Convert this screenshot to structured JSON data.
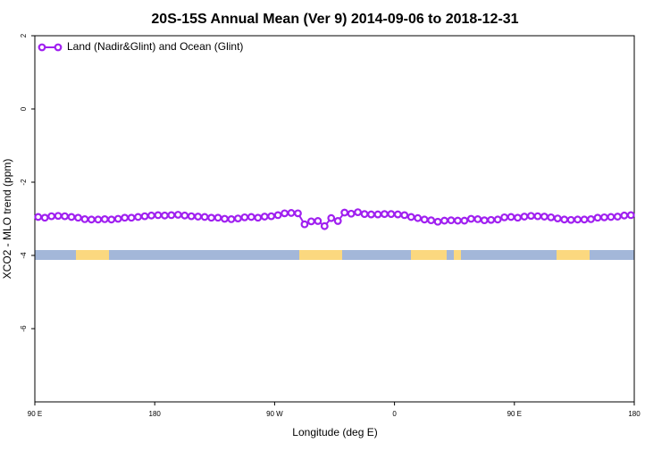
{
  "chart_data": {
    "type": "line",
    "title": "20S-15S Annual Mean (Ver 9)   2014-09-06 to 2018-12-31",
    "xlabel": "Longitude (deg E)",
    "ylabel": "XCO2 - MLO trend (ppm)",
    "xlim": [
      90,
      540
    ],
    "xticks": [
      {
        "value": 90,
        "label": "90 E"
      },
      180,
      {
        "value": 270,
        "label": "90 W"
      },
      {
        "value": 360,
        "label": "0"
      },
      {
        "value": 450,
        "label": "90 E"
      },
      {
        "value": 540,
        "label": "180"
      }
    ],
    "ylim": [
      -8,
      2
    ],
    "yticks": [
      2,
      0,
      -2,
      -4,
      -6
    ],
    "legend": "upper left",
    "x": [
      92.5,
      97.5,
      102.5,
      107.5,
      112.5,
      117.5,
      122.5,
      127.5,
      132.5,
      137.5,
      142.5,
      147.5,
      152.5,
      157.5,
      162.5,
      167.5,
      172.5,
      177.5,
      182.5,
      187.5,
      192.5,
      197.5,
      202.5,
      207.5,
      212.5,
      217.5,
      222.5,
      227.5,
      232.5,
      237.5,
      242.5,
      247.5,
      252.5,
      257.5,
      262.5,
      267.5,
      272.5,
      277.5,
      282.5,
      287.5,
      292.5,
      297.5,
      302.5,
      307.5,
      312.5,
      317.5,
      322.5,
      327.5,
      332.5,
      337.5,
      342.5,
      347.5,
      352.5,
      357.5,
      362.5,
      367.5,
      372.5,
      377.5,
      382.5,
      387.5,
      392.5,
      397.5,
      402.5,
      407.5,
      412.5,
      417.5,
      422.5,
      427.5,
      432.5,
      437.5,
      442.5,
      447.5,
      452.5,
      457.5,
      462.5,
      467.5,
      472.5,
      477.5,
      482.5,
      487.5,
      492.5,
      497.5,
      502.5,
      507.5,
      512.5,
      517.5,
      522.5,
      527.5,
      532.5,
      537.5
    ],
    "series": [
      {
        "name": "Land (Nadir&Glint) and Ocean (Glint)",
        "color": "#a020f0",
        "values": [
          -2.95,
          -2.97,
          -2.93,
          -2.92,
          -2.93,
          -2.95,
          -2.97,
          -3.01,
          -3.02,
          -3.02,
          -3.01,
          -3.02,
          -3.0,
          -2.97,
          -2.97,
          -2.95,
          -2.93,
          -2.91,
          -2.9,
          -2.91,
          -2.9,
          -2.89,
          -2.91,
          -2.93,
          -2.94,
          -2.95,
          -2.97,
          -2.97,
          -3.0,
          -3.01,
          -2.99,
          -2.96,
          -2.95,
          -2.97,
          -2.94,
          -2.93,
          -2.9,
          -2.85,
          -2.84,
          -2.85,
          -3.15,
          -3.07,
          -3.06,
          -3.2,
          -2.98,
          -3.06,
          -2.83,
          -2.86,
          -2.82,
          -2.87,
          -2.88,
          -2.88,
          -2.87,
          -2.87,
          -2.88,
          -2.9,
          -2.95,
          -2.98,
          -3.02,
          -3.04,
          -3.08,
          -3.05,
          -3.04,
          -3.05,
          -3.05,
          -3.0,
          -3.01,
          -3.04,
          -3.03,
          -3.02,
          -2.96,
          -2.95,
          -2.97,
          -2.94,
          -2.92,
          -2.93,
          -2.94,
          -2.96,
          -2.99,
          -3.02,
          -3.03,
          -3.02,
          -3.02,
          -3.01,
          -2.97,
          -2.96,
          -2.95,
          -2.94,
          -2.91,
          -2.9
        ]
      }
    ]
  }
}
